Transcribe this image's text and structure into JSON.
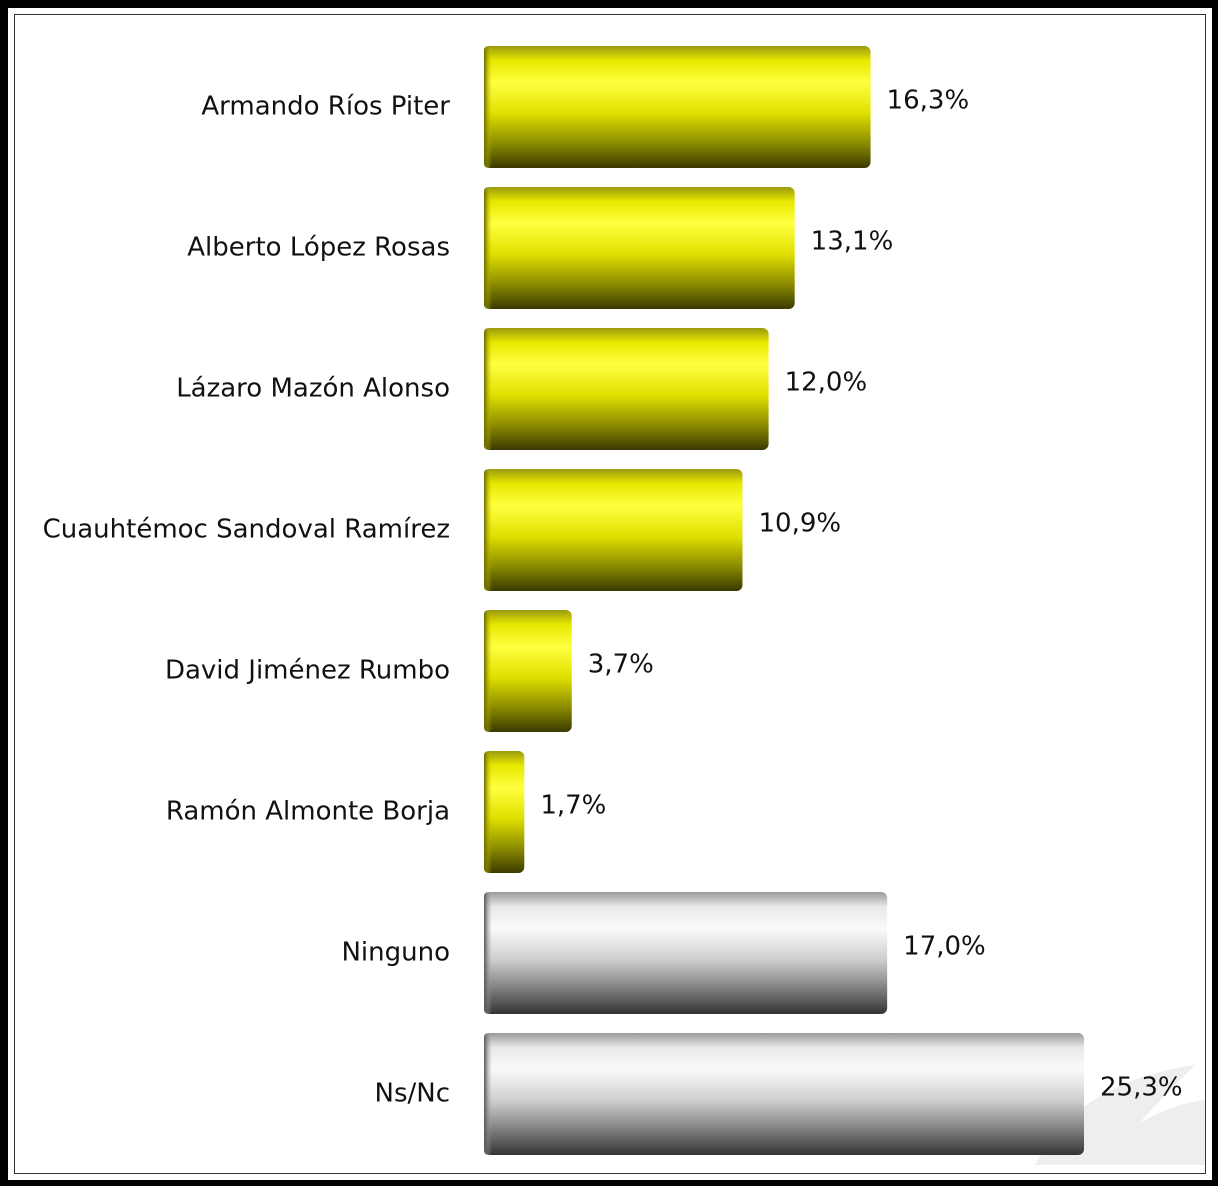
{
  "chart_data": {
    "type": "bar",
    "orientation": "horizontal",
    "categories": [
      "Armando Ríos Piter",
      "Alberto López Rosas",
      "Lázaro Mazón Alonso",
      "Cuauhtémoc Sandoval Ramírez",
      "David Jiménez Rumbo",
      "Ramón Almonte Borja",
      "Ninguno",
      "Ns/Nc"
    ],
    "values": [
      16.3,
      13.1,
      12.0,
      10.9,
      3.7,
      1.7,
      17.0,
      25.3
    ],
    "value_labels": [
      "16,3%",
      "13,1%",
      "12,0%",
      "10,9%",
      "3,7%",
      "1,7%",
      "17,0%",
      "25,3%"
    ],
    "bar_colors": [
      "yellow",
      "yellow",
      "yellow",
      "yellow",
      "yellow",
      "yellow",
      "gray",
      "gray"
    ],
    "title": "",
    "xlabel": "",
    "ylabel": "",
    "xlim": [
      0,
      25.3
    ],
    "grid": false,
    "legend": "none"
  },
  "colors": {
    "yellow_top": "#ffff33",
    "yellow_mid": "#e6e600",
    "yellow_bottom": "#4a4a00",
    "gray_top": "#f5f5f5",
    "gray_mid": "#c8c8c8",
    "gray_bottom": "#3c3c3c",
    "text": "#111111"
  }
}
